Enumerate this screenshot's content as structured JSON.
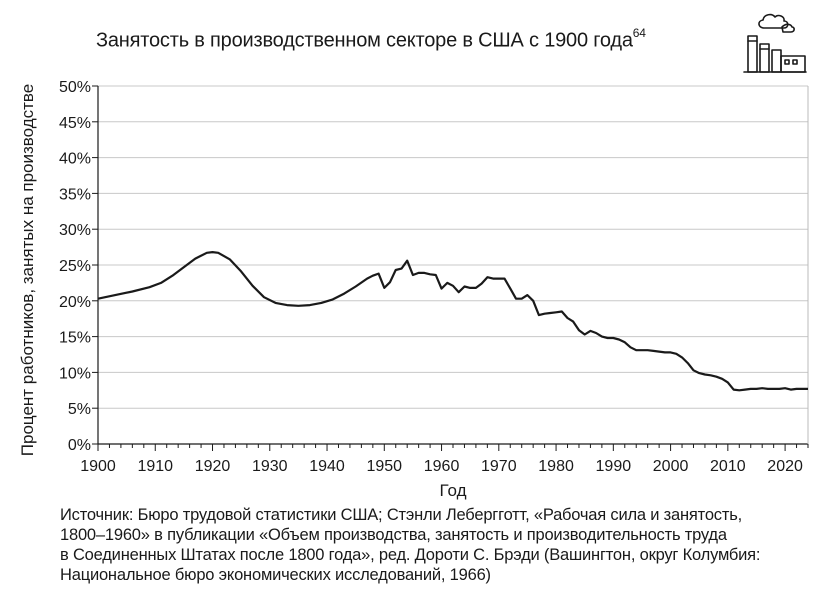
{
  "title": "Занятость в производственном секторе в США с 1900 года",
  "title_footnote": "64",
  "icon": "factory-icon",
  "source_lines": [
    "Источник: Бюро трудовой статистики США; Стэнли Лебергготт, «Рабочая сила и занятость,",
    "1800–1960» в публикации «Объем производства, занятость и производительность труда",
    "в Соединенных Штатах после 1800 года», ред. Дороти С. Брэди (Вашингтон, округ Колумбия:",
    "Национальное бюро экономических исследований, 1966)"
  ],
  "chart_data": {
    "type": "line",
    "title": "Занятость в производственном секторе в США с 1900 года",
    "xlabel": "Год",
    "ylabel": "Процент работников, занятых на производстве",
    "xlim": [
      1900,
      2024
    ],
    "ylim": [
      0,
      50
    ],
    "xticks": [
      1900,
      1910,
      1920,
      1930,
      1940,
      1950,
      1960,
      1970,
      1980,
      1990,
      2000,
      2010,
      2020
    ],
    "yticks": [
      0,
      5,
      10,
      15,
      20,
      25,
      30,
      35,
      40,
      45,
      50
    ],
    "ytick_labels": [
      "0%",
      "5%",
      "10%",
      "15%",
      "20%",
      "25%",
      "30%",
      "35%",
      "40%",
      "45%",
      "50%"
    ],
    "grid": "horizontal",
    "line_color": "#1a1a1a",
    "grid_color": "#c8c8c8",
    "series": [
      {
        "x": [
          1900,
          1903,
          1906,
          1909,
          1911,
          1913,
          1915,
          1917,
          1919,
          1920,
          1921,
          1923,
          1925,
          1927,
          1929,
          1931,
          1933,
          1935,
          1937,
          1939,
          1941,
          1943,
          1945,
          1947,
          1948,
          1949,
          1950,
          1951,
          1952,
          1953,
          1954,
          1955,
          1956,
          1957,
          1958,
          1959,
          1960,
          1961,
          1962,
          1963,
          1964,
          1965,
          1966,
          1967,
          1968,
          1969,
          1970,
          1971,
          1972,
          1973,
          1974,
          1975,
          1976,
          1977,
          1978,
          1979,
          1980,
          1981,
          1982,
          1983,
          1984,
          1985,
          1986,
          1987,
          1988,
          1989,
          1990,
          1991,
          1992,
          1993,
          1994,
          1995,
          1996,
          1997,
          1998,
          1999,
          2000,
          2001,
          2002,
          2003,
          2004,
          2005,
          2006,
          2007,
          2008,
          2009,
          2010,
          2011,
          2012,
          2013,
          2014,
          2015,
          2016,
          2017,
          2018,
          2019,
          2020,
          2021,
          2022,
          2023,
          2024
        ],
        "values": [
          20.3,
          20.8,
          21.3,
          21.9,
          22.5,
          23.5,
          24.7,
          25.9,
          26.7,
          26.8,
          26.7,
          25.8,
          24.1,
          22.1,
          20.5,
          19.7,
          19.4,
          19.3,
          19.4,
          19.7,
          20.2,
          21.0,
          22.0,
          23.1,
          23.5,
          23.8,
          21.8,
          22.6,
          24.3,
          24.5,
          25.6,
          23.6,
          23.9,
          23.9,
          23.7,
          23.6,
          21.7,
          22.5,
          22.1,
          21.2,
          22.0,
          21.8,
          21.8,
          22.4,
          23.3,
          23.1,
          23.1,
          23.1,
          21.7,
          20.3,
          20.3,
          20.8,
          20.0,
          18.0,
          18.2,
          18.3,
          18.4,
          18.5,
          17.6,
          17.1,
          15.9,
          15.3,
          15.8,
          15.5,
          15.0,
          14.8,
          14.8,
          14.6,
          14.2,
          13.5,
          13.1,
          13.1,
          13.1,
          13.0,
          12.9,
          12.8,
          12.8,
          12.6,
          12.1,
          11.3,
          10.3,
          9.9,
          9.7,
          9.6,
          9.4,
          9.1,
          8.6,
          7.6,
          7.5,
          7.6,
          7.7,
          7.7,
          7.8,
          7.7,
          7.7,
          7.7,
          7.8,
          7.6,
          7.7,
          7.7,
          7.7
        ]
      }
    ]
  }
}
